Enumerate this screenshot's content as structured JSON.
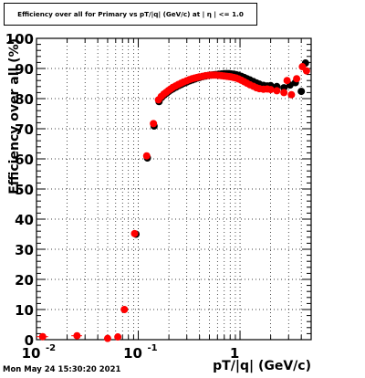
{
  "title": "Efficiency over all for Primary vs pT/|q| (GeV/c) at | η | <= 1.0",
  "timestamp": "Mon May 24 15:30:20 2021",
  "chart_data": {
    "type": "scatter",
    "title": "Efficiency over all for Primary vs pT/|q| (GeV/c) at | η | <= 1.0",
    "xlabel": "pT/|q| (GeV/c)",
    "ylabel": "Efficiency over all (%)",
    "xscale": "log",
    "xlim": [
      0.01,
      5.0
    ],
    "ylim": [
      0,
      100
    ],
    "grid": true,
    "legend": "none",
    "x_tick_labels": [
      {
        "x": 0.01,
        "base": "10",
        "exp": "-2"
      },
      {
        "x": 0.1,
        "base": "10",
        "exp": "-1"
      },
      {
        "x": 1,
        "base": "1",
        "exp": ""
      }
    ],
    "y_ticks": [
      0,
      10,
      20,
      30,
      40,
      50,
      60,
      70,
      80,
      90,
      100
    ],
    "series": [
      {
        "color": "#000000",
        "points": [
          {
            "x": 0.095,
            "y": 35.0,
            "xerr": 0.006,
            "yerr": 1.2
          },
          {
            "x": 0.123,
            "y": 60.3,
            "xerr": 0.005,
            "yerr": 1.0
          },
          {
            "x": 0.143,
            "y": 70.9,
            "xerr": 0.004,
            "yerr": 0.9
          },
          {
            "x": 0.16,
            "y": 79.0
          },
          {
            "x": 0.17,
            "y": 80.4
          },
          {
            "x": 0.18,
            "y": 81.2
          },
          {
            "x": 0.19,
            "y": 81.8
          },
          {
            "x": 0.2,
            "y": 82.4
          },
          {
            "x": 0.21,
            "y": 82.9
          },
          {
            "x": 0.22,
            "y": 83.3
          },
          {
            "x": 0.235,
            "y": 83.8
          },
          {
            "x": 0.25,
            "y": 84.3
          },
          {
            "x": 0.265,
            "y": 84.7
          },
          {
            "x": 0.28,
            "y": 85.1
          },
          {
            "x": 0.3,
            "y": 85.5
          },
          {
            "x": 0.32,
            "y": 85.9
          },
          {
            "x": 0.34,
            "y": 86.2
          },
          {
            "x": 0.36,
            "y": 86.5
          },
          {
            "x": 0.38,
            "y": 86.8
          },
          {
            "x": 0.4,
            "y": 87.0
          },
          {
            "x": 0.43,
            "y": 87.3
          },
          {
            "x": 0.46,
            "y": 87.5
          },
          {
            "x": 0.49,
            "y": 87.7
          },
          {
            "x": 0.52,
            "y": 87.8
          },
          {
            "x": 0.55,
            "y": 87.9
          },
          {
            "x": 0.58,
            "y": 88.0
          },
          {
            "x": 0.62,
            "y": 88.1
          },
          {
            "x": 0.66,
            "y": 88.2
          },
          {
            "x": 0.7,
            "y": 88.3
          },
          {
            "x": 0.74,
            "y": 88.3
          },
          {
            "x": 0.78,
            "y": 88.3
          },
          {
            "x": 0.82,
            "y": 88.2
          },
          {
            "x": 0.87,
            "y": 88.1
          },
          {
            "x": 0.92,
            "y": 87.9
          },
          {
            "x": 0.97,
            "y": 87.7
          },
          {
            "x": 1.03,
            "y": 87.4
          },
          {
            "x": 1.1,
            "y": 87.0
          },
          {
            "x": 1.17,
            "y": 86.6
          },
          {
            "x": 1.25,
            "y": 86.2
          },
          {
            "x": 1.35,
            "y": 85.7
          },
          {
            "x": 1.45,
            "y": 85.2
          },
          {
            "x": 1.55,
            "y": 84.8
          },
          {
            "x": 1.7,
            "y": 84.4
          },
          {
            "x": 1.85,
            "y": 84.2
          },
          {
            "x": 2.0,
            "y": 84.3
          },
          {
            "x": 2.3,
            "y": 84.0
          },
          {
            "x": 2.7,
            "y": 83.6
          },
          {
            "x": 3.1,
            "y": 84.5
          },
          {
            "x": 3.5,
            "y": 85.3
          },
          {
            "x": 4.0,
            "y": 82.4
          },
          {
            "x": 4.4,
            "y": 91.8
          }
        ]
      },
      {
        "color": "#ff0000",
        "points": [
          {
            "x": 0.0115,
            "y": 1.0,
            "xerr": 0.0015
          },
          {
            "x": 0.025,
            "y": 1.3,
            "xerr": 0.003
          },
          {
            "x": 0.05,
            "y": 0.4
          },
          {
            "x": 0.063,
            "y": 0.9
          },
          {
            "x": 0.073,
            "y": 10.0
          },
          {
            "x": 0.092,
            "y": 35.2,
            "xerr": 0.006,
            "yerr": 1.2
          },
          {
            "x": 0.121,
            "y": 61.0,
            "xerr": 0.005,
            "yerr": 1.0
          },
          {
            "x": 0.141,
            "y": 71.7,
            "xerr": 0.004,
            "yerr": 0.9
          },
          {
            "x": 0.158,
            "y": 79.6
          },
          {
            "x": 0.168,
            "y": 80.7
          },
          {
            "x": 0.178,
            "y": 81.5
          },
          {
            "x": 0.188,
            "y": 82.1
          },
          {
            "x": 0.198,
            "y": 82.7
          },
          {
            "x": 0.208,
            "y": 83.2
          },
          {
            "x": 0.218,
            "y": 83.7
          },
          {
            "x": 0.233,
            "y": 84.2
          },
          {
            "x": 0.248,
            "y": 84.7
          },
          {
            "x": 0.263,
            "y": 85.1
          },
          {
            "x": 0.278,
            "y": 85.5
          },
          {
            "x": 0.298,
            "y": 85.9
          },
          {
            "x": 0.318,
            "y": 86.3
          },
          {
            "x": 0.338,
            "y": 86.6
          },
          {
            "x": 0.358,
            "y": 86.8
          },
          {
            "x": 0.378,
            "y": 87.0
          },
          {
            "x": 0.398,
            "y": 87.2
          },
          {
            "x": 0.428,
            "y": 87.4
          },
          {
            "x": 0.458,
            "y": 87.6
          },
          {
            "x": 0.488,
            "y": 87.7
          },
          {
            "x": 0.518,
            "y": 87.8
          },
          {
            "x": 0.548,
            "y": 87.8
          },
          {
            "x": 0.578,
            "y": 87.8
          },
          {
            "x": 0.618,
            "y": 87.7
          },
          {
            "x": 0.658,
            "y": 87.6
          },
          {
            "x": 0.698,
            "y": 87.5
          },
          {
            "x": 0.738,
            "y": 87.4
          },
          {
            "x": 0.778,
            "y": 87.3
          },
          {
            "x": 0.818,
            "y": 87.2
          },
          {
            "x": 0.868,
            "y": 87.0
          },
          {
            "x": 0.918,
            "y": 86.8
          },
          {
            "x": 0.968,
            "y": 86.5
          },
          {
            "x": 1.03,
            "y": 86.1
          },
          {
            "x": 1.1,
            "y": 85.6
          },
          {
            "x": 1.17,
            "y": 85.1
          },
          {
            "x": 1.25,
            "y": 84.6
          },
          {
            "x": 1.35,
            "y": 84.1
          },
          {
            "x": 1.45,
            "y": 83.6
          },
          {
            "x": 1.55,
            "y": 83.3
          },
          {
            "x": 1.7,
            "y": 83.1
          },
          {
            "x": 1.85,
            "y": 83.2
          },
          {
            "x": 2.0,
            "y": 83.0
          },
          {
            "x": 2.3,
            "y": 82.6
          },
          {
            "x": 2.7,
            "y": 82.0
          },
          {
            "x": 2.9,
            "y": 86.0
          },
          {
            "x": 3.2,
            "y": 81.3
          },
          {
            "x": 3.6,
            "y": 86.6
          },
          {
            "x": 4.1,
            "y": 90.6
          },
          {
            "x": 4.5,
            "y": 89.2
          }
        ]
      }
    ]
  }
}
